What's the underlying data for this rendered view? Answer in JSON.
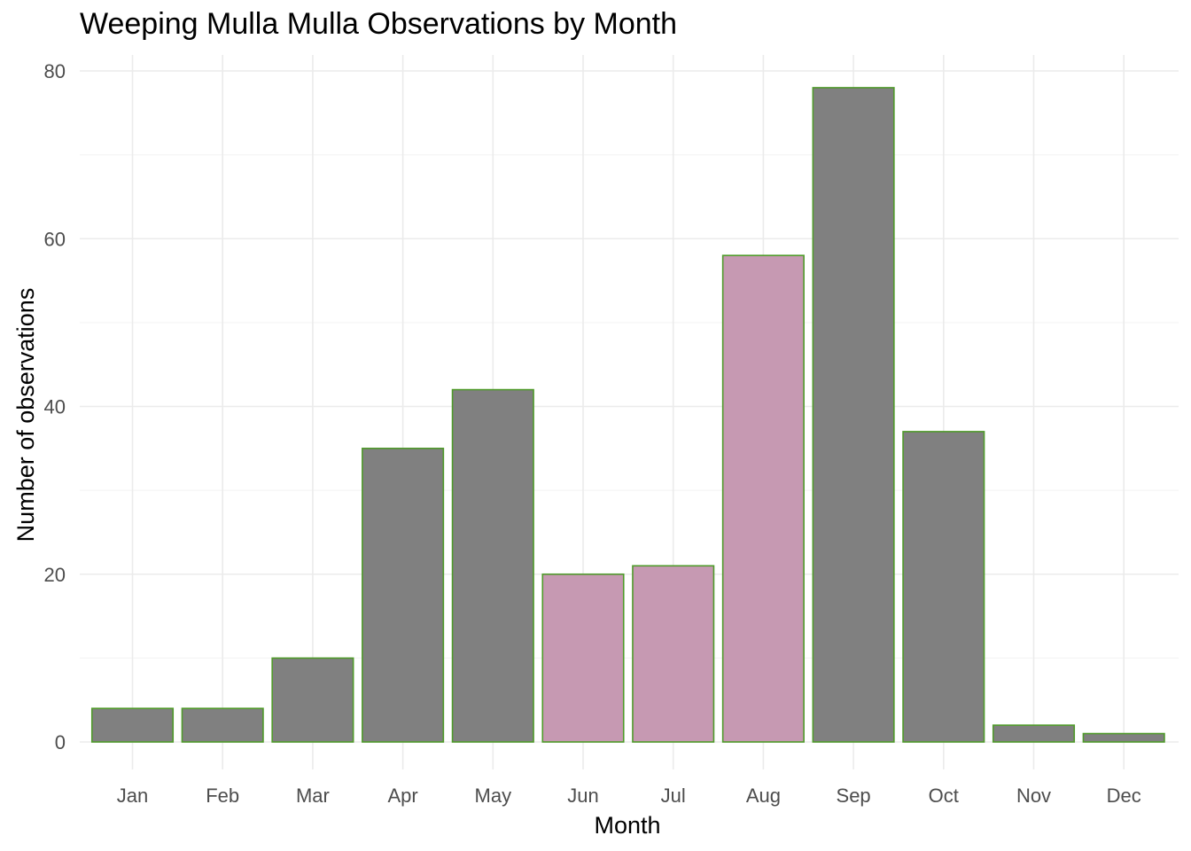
{
  "chart_data": {
    "type": "bar",
    "title": "Weeping Mulla Mulla Observations by Month",
    "xlabel": "Month",
    "ylabel": "Number of observations",
    "categories": [
      "Jan",
      "Feb",
      "Mar",
      "Apr",
      "May",
      "Jun",
      "Jul",
      "Aug",
      "Sep",
      "Oct",
      "Nov",
      "Dec"
    ],
    "values": [
      4,
      4,
      10,
      35,
      42,
      20,
      21,
      58,
      78,
      37,
      2,
      1
    ],
    "highlighted": [
      false,
      false,
      false,
      false,
      false,
      true,
      true,
      true,
      false,
      false,
      false,
      false
    ],
    "ylim": [
      0,
      80
    ],
    "yticks": [
      0,
      20,
      40,
      60,
      80
    ],
    "grid": true,
    "legend": "none",
    "colors": {
      "bar_default": "#808080",
      "bar_highlight": "#c699b2",
      "bar_outline": "#4f9a2a",
      "grid_major": "#ebebeb",
      "grid_minor": "#f5f5f5"
    }
  }
}
